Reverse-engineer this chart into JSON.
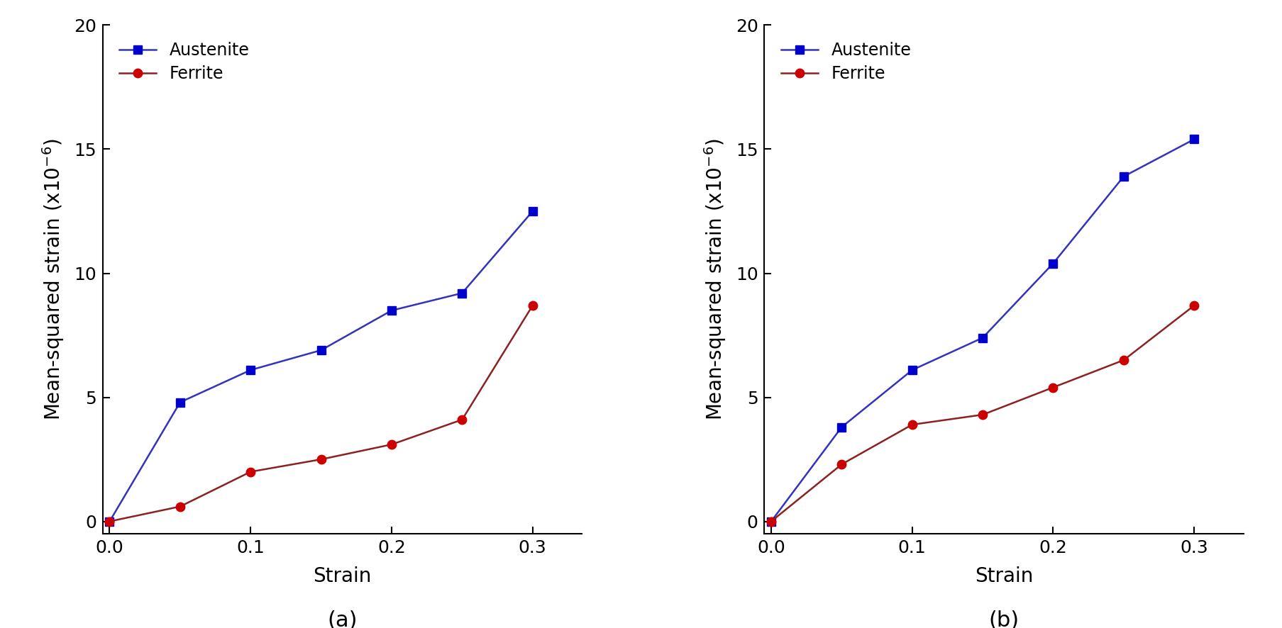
{
  "panel_a": {
    "austenite_x": [
      0.0,
      0.05,
      0.1,
      0.15,
      0.2,
      0.25,
      0.3
    ],
    "austenite_y": [
      0.0,
      4.8,
      6.1,
      6.9,
      8.5,
      9.2,
      12.5
    ],
    "ferrite_x": [
      0.0,
      0.05,
      0.1,
      0.15,
      0.2,
      0.25,
      0.3
    ],
    "ferrite_y": [
      0.0,
      0.6,
      2.0,
      2.5,
      3.1,
      4.1,
      8.7
    ],
    "label": "(a)"
  },
  "panel_b": {
    "austenite_x": [
      0.0,
      0.05,
      0.1,
      0.15,
      0.2,
      0.25,
      0.3
    ],
    "austenite_y": [
      0.0,
      3.8,
      6.1,
      7.4,
      10.4,
      13.9,
      15.4
    ],
    "ferrite_x": [
      0.0,
      0.05,
      0.1,
      0.15,
      0.2,
      0.25,
      0.3
    ],
    "ferrite_y": [
      0.0,
      2.3,
      3.9,
      4.3,
      5.4,
      6.5,
      8.7
    ],
    "label": "(b)"
  },
  "austenite_color": "#0000CD",
  "ferrite_color": "#CC0000",
  "line_color_austenite": "#3333BB",
  "line_color_ferrite": "#8B2222",
  "xlabel": "Strain",
  "ylabel": "Mean-squared strain (x10$^{-6}$)",
  "ylim": [
    -0.5,
    20
  ],
  "xlim": [
    -0.005,
    0.335
  ],
  "yticks": [
    0,
    5,
    10,
    15,
    20
  ],
  "xticks": [
    0.0,
    0.1,
    0.2,
    0.3
  ],
  "legend_austenite": "Austenite",
  "legend_ferrite": "Ferrite",
  "marker_size_sq": 9,
  "marker_size_circ": 9,
  "linewidth": 1.8,
  "font_size_label": 20,
  "font_size_tick": 18,
  "font_size_legend": 17,
  "font_size_panel_label": 22,
  "background_color": "#ffffff",
  "spine_linewidth": 1.5
}
